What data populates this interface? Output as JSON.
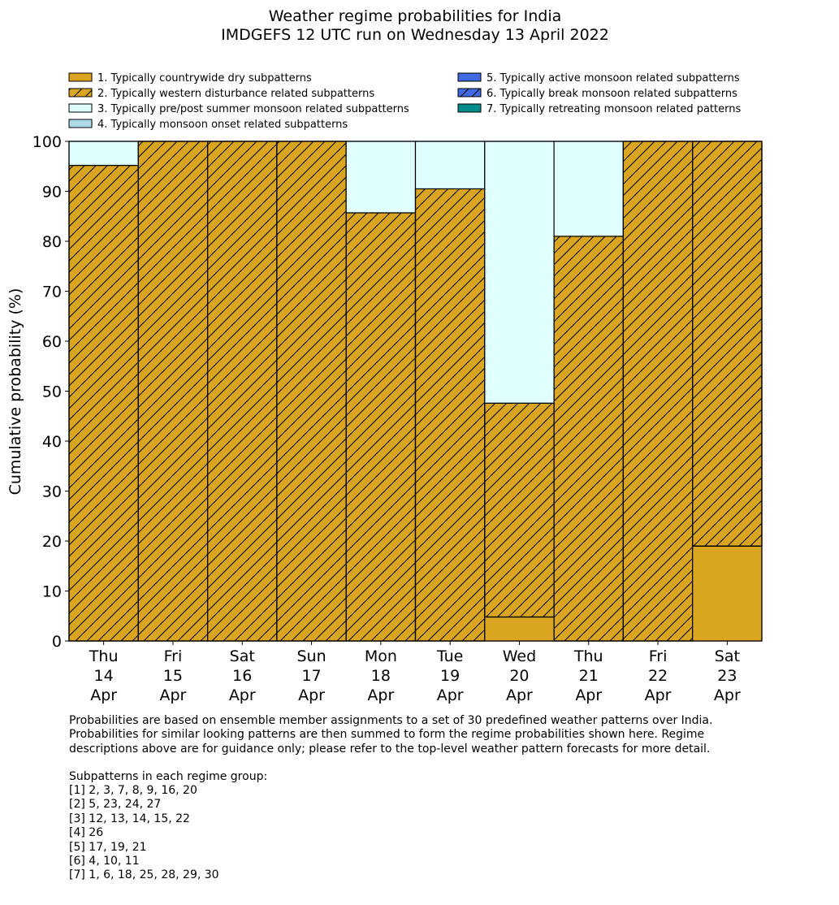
{
  "chart_data": {
    "type": "bar",
    "stacked": true,
    "title": "Weather regime probabilities for India",
    "subtitle": "IMDGEFS 12 UTC run on Wednesday 13 April 2022",
    "ylabel": "Cumulative probability (%)",
    "xlabel": "",
    "ylim": [
      0,
      100
    ],
    "yticks": [
      0,
      10,
      20,
      30,
      40,
      50,
      60,
      70,
      80,
      90,
      100
    ],
    "grid": false,
    "legend_position": "top",
    "categories": [
      [
        "Thu",
        "14",
        "Apr"
      ],
      [
        "Fri",
        "15",
        "Apr"
      ],
      [
        "Sat",
        "16",
        "Apr"
      ],
      [
        "Sun",
        "17",
        "Apr"
      ],
      [
        "Mon",
        "18",
        "Apr"
      ],
      [
        "Tue",
        "19",
        "Apr"
      ],
      [
        "Wed",
        "20",
        "Apr"
      ],
      [
        "Thu",
        "21",
        "Apr"
      ],
      [
        "Fri",
        "22",
        "Apr"
      ],
      [
        "Sat",
        "23",
        "Apr"
      ]
    ],
    "series": [
      {
        "name": "1. Typically countrywide dry subpatterns",
        "color": "#daa520",
        "hatch": false,
        "values": [
          0,
          0,
          0,
          0,
          0,
          0,
          4.8,
          0,
          0,
          19.0
        ]
      },
      {
        "name": "2. Typically western disturbance related subpatterns",
        "color": "#daa520",
        "hatch": true,
        "values": [
          95.2,
          100,
          100,
          100,
          85.7,
          90.5,
          42.8,
          81.0,
          100,
          81.0
        ]
      },
      {
        "name": "3. Typically pre/post summer monsoon related subpatterns",
        "color": "#e0ffff",
        "hatch": false,
        "values": [
          4.8,
          0,
          0,
          0,
          14.3,
          9.5,
          52.4,
          19.0,
          0,
          0
        ]
      },
      {
        "name": "4. Typically monsoon onset related subpatterns",
        "color": "#add8e6",
        "hatch": false,
        "values": [
          0,
          0,
          0,
          0,
          0,
          0,
          0,
          0,
          0,
          0
        ]
      },
      {
        "name": "5. Typically active monsoon related subpatterns",
        "color": "#4169e1",
        "hatch": false,
        "values": [
          0,
          0,
          0,
          0,
          0,
          0,
          0,
          0,
          0,
          0
        ]
      },
      {
        "name": "6. Typically break monsoon related subpatterns",
        "color": "#4169e1",
        "hatch": true,
        "values": [
          0,
          0,
          0,
          0,
          0,
          0,
          0,
          0,
          0,
          0
        ]
      },
      {
        "name": "7. Typically retreating monsoon related patterns",
        "color": "#008b8b",
        "hatch": false,
        "values": [
          0,
          0,
          0,
          0,
          0,
          0,
          0,
          0,
          0,
          0
        ]
      }
    ]
  },
  "notes": {
    "description": "Probabilities are based on ensemble member assignments to a set of 30 predefined weather patterns over India.\nProbabilities for similar looking patterns are then summed to form the regime probabilities shown here. Regime\ndescriptions above are for guidance only; please refer to the top-level weather pattern forecasts for more detail.",
    "subpatterns_heading": "Subpatterns in each regime group:",
    "subpatterns": [
      "[1] 2, 3, 7, 8, 9, 16, 20",
      "[2] 5, 23, 24, 27",
      "[3] 12, 13, 14, 15, 22",
      "[4] 26",
      "[5] 17, 19, 21",
      "[6] 4, 10, 11",
      "[7] 1, 6, 18, 25, 28, 29, 30"
    ]
  }
}
